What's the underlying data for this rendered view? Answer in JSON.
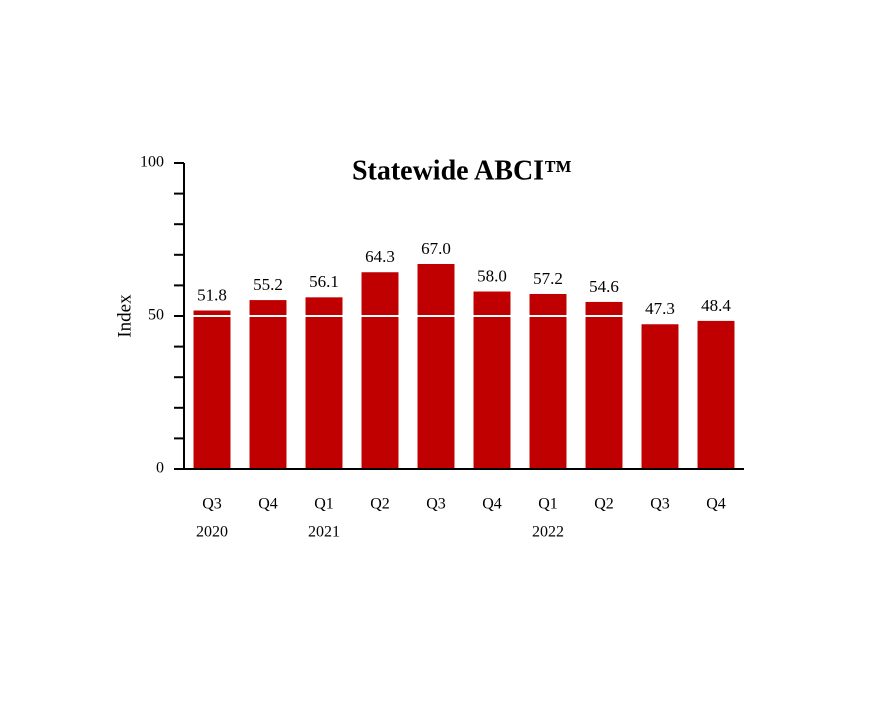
{
  "chart_data": {
    "type": "bar",
    "title": "Statewide ABCI™",
    "ylabel": "Index",
    "categories": [
      "Q3",
      "Q4",
      "Q1",
      "Q2",
      "Q3",
      "Q4",
      "Q1",
      "Q2",
      "Q3",
      "Q4"
    ],
    "year_labels": [
      "2020",
      null,
      "2021",
      null,
      null,
      null,
      "2022",
      null,
      null,
      null
    ],
    "values": [
      51.8,
      55.2,
      56.1,
      64.3,
      67.0,
      58.0,
      57.2,
      54.6,
      47.3,
      48.4
    ],
    "value_labels": [
      "51.8",
      "55.2",
      "56.1",
      "64.3",
      "67.0",
      "58.0",
      "57.2",
      "54.6",
      "47.3",
      "48.4"
    ],
    "color": "#c00000",
    "ylim": [
      0,
      100
    ],
    "yticks": [
      0,
      50,
      100
    ],
    "yminorticks": [
      10,
      20,
      30,
      40,
      60,
      70,
      80,
      90
    ],
    "reference_line": 50
  }
}
